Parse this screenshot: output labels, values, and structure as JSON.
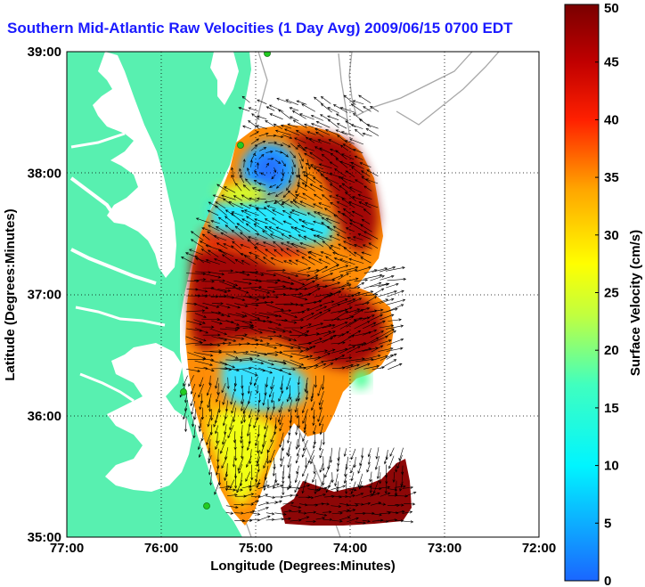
{
  "title": "Southern Mid-Atlantic Raw Velocities (1 Day Avg) 2009/06/15 0700 EDT",
  "xlabel": "Longitude (Degrees:Minutes)",
  "ylabel": "Latitude (Degrees:Minutes)",
  "x_ticks": [
    "77:00",
    "76:00",
    "75:00",
    "74:00",
    "73:00",
    "72:00"
  ],
  "y_ticks": [
    "39:00",
    "38:00",
    "37:00",
    "36:00",
    "35:00"
  ],
  "colorbar": {
    "label": "Surface Velocity (cm/s)",
    "ticks": [
      "0",
      "5",
      "10",
      "15",
      "20",
      "25",
      "30",
      "35",
      "40",
      "45",
      "50"
    ],
    "min": 0,
    "max": 50
  },
  "colors": {
    "land": "#58f0b0",
    "title": "#1a1aff",
    "station": "#22cc22"
  },
  "extent": {
    "lon": [
      -77,
      -72
    ],
    "lat": [
      35,
      39
    ]
  }
}
